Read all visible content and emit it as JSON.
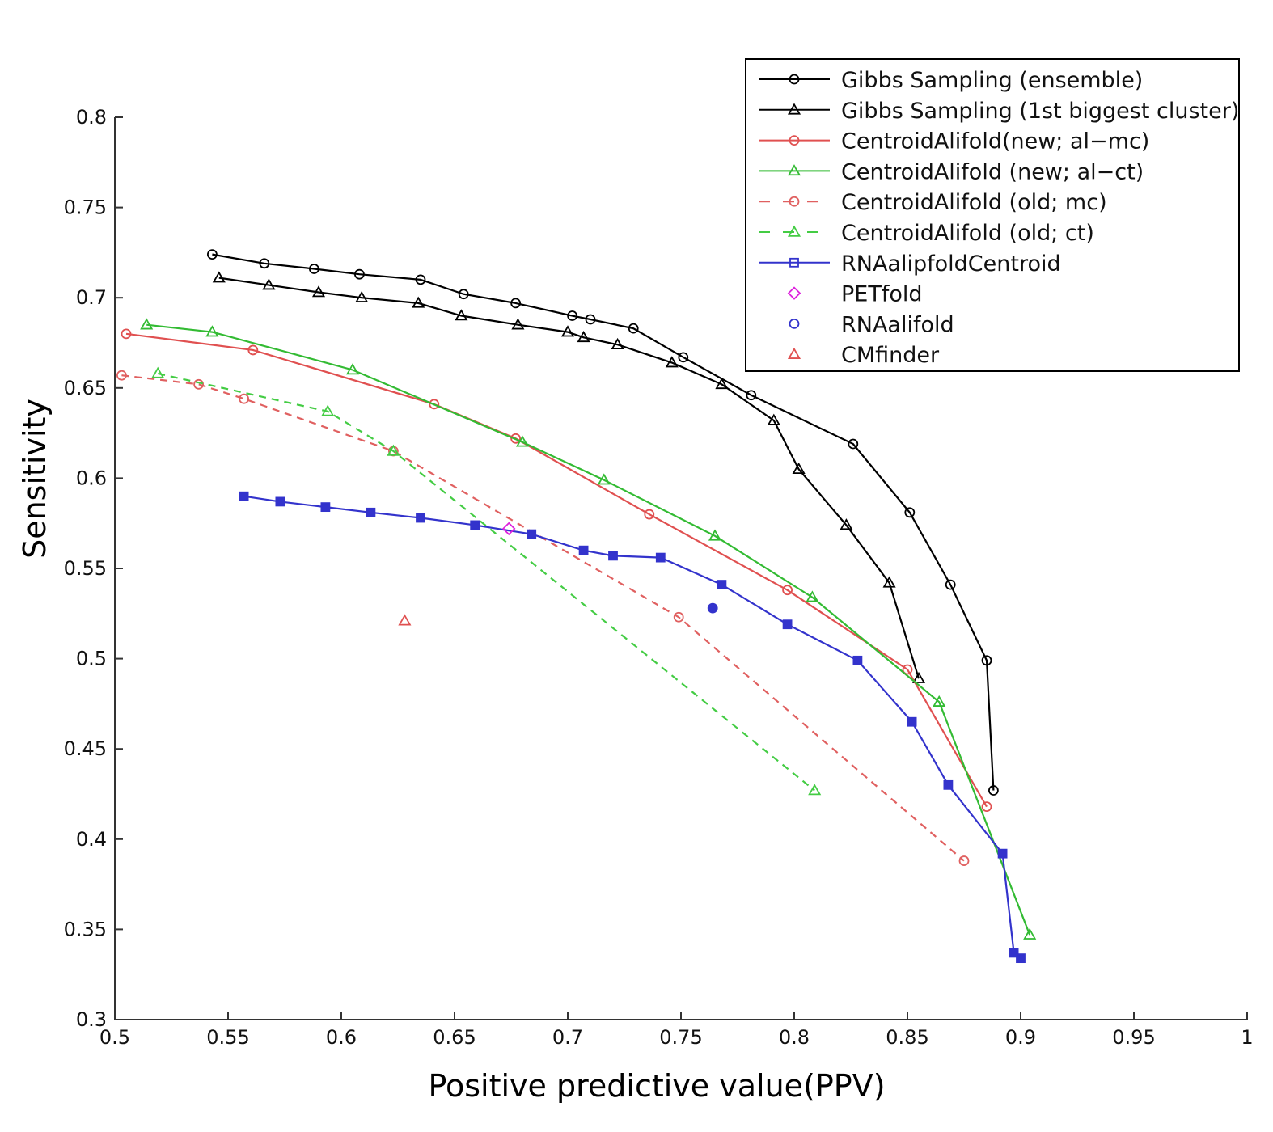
{
  "chart_data": {
    "type": "line",
    "title": "",
    "xlabel": "Positive predictive value(PPV)",
    "ylabel": "Sensitivity",
    "xlim": [
      0.5,
      1.0
    ],
    "ylim": [
      0.3,
      0.8
    ],
    "xticks": [
      0.5,
      0.55,
      0.6,
      0.65,
      0.7,
      0.75,
      0.8,
      0.85,
      0.9,
      0.95,
      1.0
    ],
    "xtick_labels": [
      "0.5",
      "0.55",
      "0.6",
      "0.65",
      "0.7",
      "0.75",
      "0.8",
      "0.85",
      "0.9",
      "0.95",
      "1"
    ],
    "yticks": [
      0.3,
      0.35,
      0.4,
      0.45,
      0.5,
      0.55,
      0.6,
      0.65,
      0.7,
      0.75,
      0.8
    ],
    "ytick_labels": [
      "0.3",
      "0.35",
      "0.4",
      "0.45",
      "0.5",
      "0.55",
      "0.6",
      "0.65",
      "0.7",
      "0.75",
      "0.8"
    ],
    "grid": false,
    "legend_position": "top-right",
    "series": [
      {
        "name": "Gibbs Sampling (ensemble)",
        "color": "#000000",
        "dash": "solid",
        "marker": "circle",
        "x": [
          0.543,
          0.566,
          0.588,
          0.608,
          0.635,
          0.654,
          0.677,
          0.702,
          0.71,
          0.729,
          0.751,
          0.781,
          0.826,
          0.851,
          0.869,
          0.885,
          0.888
        ],
        "y": [
          0.724,
          0.719,
          0.716,
          0.713,
          0.71,
          0.702,
          0.697,
          0.69,
          0.688,
          0.683,
          0.667,
          0.646,
          0.619,
          0.581,
          0.541,
          0.499,
          0.427
        ]
      },
      {
        "name": "Gibbs Sampling (1st biggest cluster)",
        "color": "#000000",
        "dash": "solid",
        "marker": "triangle",
        "x": [
          0.546,
          0.568,
          0.59,
          0.609,
          0.634,
          0.653,
          0.678,
          0.7,
          0.707,
          0.722,
          0.746,
          0.768,
          0.791,
          0.802,
          0.823,
          0.842,
          0.855
        ],
        "y": [
          0.711,
          0.707,
          0.703,
          0.7,
          0.697,
          0.69,
          0.685,
          0.681,
          0.678,
          0.674,
          0.664,
          0.652,
          0.632,
          0.605,
          0.574,
          0.542,
          0.489
        ]
      },
      {
        "name": "CentroidAlifold(new; al−mc)",
        "color": "#e05050",
        "dash": "solid",
        "marker": "circle",
        "x": [
          0.505,
          0.561,
          0.641,
          0.677,
          0.736,
          0.797,
          0.85,
          0.885
        ],
        "y": [
          0.68,
          0.671,
          0.641,
          0.622,
          0.58,
          0.538,
          0.494,
          0.418
        ]
      },
      {
        "name": "CentroidAlifold (new; al−ct)",
        "color": "#33bb33",
        "dash": "solid",
        "marker": "triangle",
        "x": [
          0.514,
          0.543,
          0.605,
          0.68,
          0.716,
          0.765,
          0.808,
          0.864,
          0.904
        ],
        "y": [
          0.685,
          0.681,
          0.66,
          0.62,
          0.599,
          0.568,
          0.534,
          0.476,
          0.347
        ]
      },
      {
        "name": "CentroidAlifold (old; mc)",
        "color": "#e06060",
        "dash": "dashed",
        "marker": "circle",
        "x": [
          0.503,
          0.537,
          0.557,
          0.623,
          0.749,
          0.875
        ],
        "y": [
          0.657,
          0.652,
          0.644,
          0.615,
          0.523,
          0.388
        ]
      },
      {
        "name": "CentroidAlifold (old; ct)",
        "color": "#44cc44",
        "dash": "dashed",
        "marker": "triangle",
        "x": [
          0.519,
          0.594,
          0.623,
          0.809
        ],
        "y": [
          0.658,
          0.637,
          0.615,
          0.427
        ]
      },
      {
        "name": "RNAalipfoldCentroid",
        "color": "#3333cc",
        "dash": "solid",
        "marker": "square",
        "x": [
          0.557,
          0.573,
          0.593,
          0.613,
          0.635,
          0.659,
          0.684,
          0.707,
          0.72,
          0.741,
          0.768,
          0.797,
          0.828,
          0.852,
          0.868,
          0.892,
          0.897,
          0.9
        ],
        "y": [
          0.59,
          0.587,
          0.584,
          0.581,
          0.578,
          0.574,
          0.569,
          0.56,
          0.557,
          0.556,
          0.541,
          0.519,
          0.499,
          0.465,
          0.43,
          0.392,
          0.337,
          0.334
        ]
      },
      {
        "name": "PETfold",
        "color": "#dd22dd",
        "dash": "none",
        "marker": "diamond",
        "x": [
          0.674
        ],
        "y": [
          0.572
        ]
      },
      {
        "name": "RNAalifold",
        "color": "#3333cc",
        "dash": "none",
        "marker": "circle",
        "x": [
          0.764
        ],
        "y": [
          0.528
        ]
      },
      {
        "name": "CMfinder",
        "color": "#e05050",
        "dash": "none",
        "marker": "triangle",
        "x": [
          0.628
        ],
        "y": [
          0.521
        ]
      }
    ]
  }
}
